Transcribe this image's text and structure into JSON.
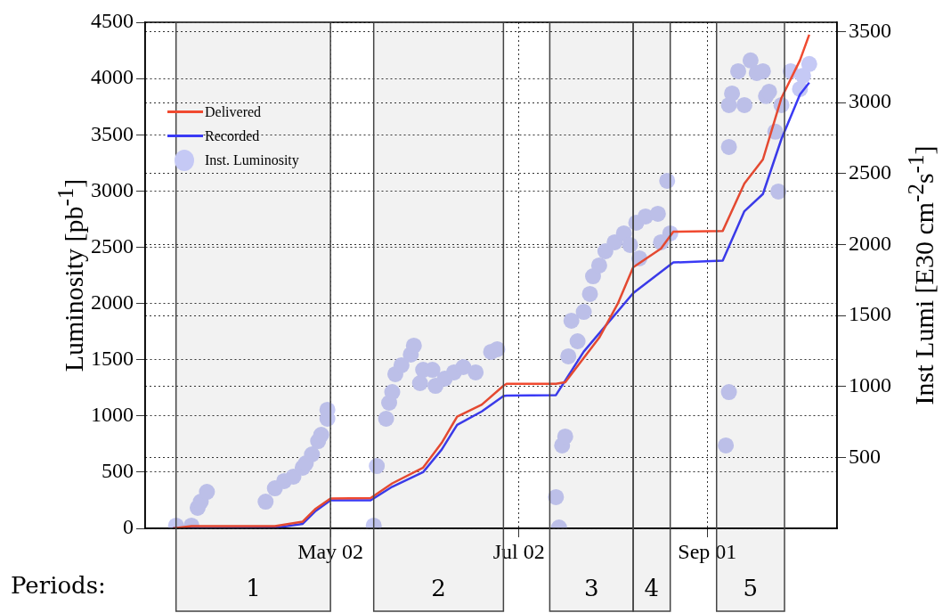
{
  "chart_data": {
    "type": "line",
    "ylabel": "Luminosity [pb$^{-1}$]",
    "y2label": "Inst Lumi [E30 cm$^{-2}$s$^{-1}$]",
    "xlim": [
      "--03-03",
      "--10-13"
    ],
    "xticks": [
      {
        "value": "--05-02",
        "label": "May 02"
      },
      {
        "value": "--07-02",
        "label": "Jul 02"
      },
      {
        "value": "--09-01",
        "label": "Sep 01"
      }
    ],
    "ylim": [
      0,
      4500
    ],
    "yticks": [
      0,
      500,
      1000,
      1500,
      2000,
      2500,
      3000,
      3500,
      4000,
      4500
    ],
    "y2lim": [
      0,
      3565
    ],
    "y2ticks": [
      500,
      1000,
      1500,
      2000,
      2500,
      3000,
      3500
    ],
    "grid": true,
    "legend": "top left",
    "marker": "none",
    "series": [
      {
        "name": "Delivered",
        "color": "#f04a30",
        "x": [
          "--03-12",
          "--03-18",
          "--04-14",
          "--04-23",
          "--04-27",
          "--05-02",
          "--05-15",
          "--05-22",
          "--06-01",
          "--06-07",
          "--06-12",
          "--06-20",
          "--06-27",
          "--06-28",
          "--07-14",
          "--07-17",
          "--07-28",
          "--08-03",
          "--08-08",
          "--08-17",
          "--08-21",
          "--09-06",
          "--09-13",
          "--09-19",
          "--09-25",
          "--10-01",
          "--10-04"
        ],
        "values": [
          0,
          20,
          20,
          60,
          170,
          265,
          270,
          400,
          540,
          760,
          993,
          1100,
          1268,
          1285,
          1285,
          1300,
          1695,
          1997,
          2321,
          2488,
          2638,
          2645,
          3066,
          3280,
          3827,
          4162,
          4390
        ]
      },
      {
        "name": "Recorded",
        "color": "#3a3af5",
        "x": [
          "--03-12",
          "--04-14",
          "--04-23",
          "--04-27",
          "--05-02",
          "--05-15",
          "--05-22",
          "--06-01",
          "--06-07",
          "--06-12",
          "--06-20",
          "--06-27",
          "--06-28",
          "--07-14",
          "--07-23",
          "--08-08",
          "--08-21",
          "--09-06",
          "--09-13",
          "--09-19",
          "--09-25",
          "--10-01",
          "--10-04"
        ],
        "values": [
          0,
          5,
          40,
          150,
          250,
          250,
          370,
          500,
          700,
          920,
          1040,
          1176,
          1180,
          1185,
          1572,
          2092,
          2364,
          2380,
          2820,
          2973,
          3462,
          3858,
          3964
        ]
      },
      {
        "name": "Inst. Luminosity",
        "type": "scatter",
        "axis": "y2",
        "marker": "circle",
        "color": "#c5c9f5",
        "x": [
          "--03-13",
          "--03-18",
          "--03-20",
          "--03-21",
          "--03-23",
          "--04-11",
          "--04-14",
          "--04-17",
          "--04-20",
          "--04-23",
          "--04-24",
          "--04-26",
          "--04-28",
          "--04-29",
          "--05-01",
          "--05-01",
          "--05-16",
          "--05-17",
          "--05-20",
          "--05-21",
          "--05-22",
          "--05-23",
          "--05-25",
          "--05-28",
          "--05-29",
          "--05-31",
          "--06-01",
          "--06-04",
          "--06-05",
          "--06-08",
          "--06-11",
          "--06-14",
          "--06-18",
          "--06-23",
          "--06-25",
          "--07-14",
          "--07-15",
          "--07-16",
          "--07-17",
          "--07-18",
          "--07-19",
          "--07-21",
          "--07-23",
          "--07-25",
          "--07-26",
          "--07-28",
          "--07-30",
          "--08-02",
          "--08-05",
          "--08-07",
          "--08-09",
          "--08-10",
          "--08-12",
          "--08-16",
          "--08-17",
          "--08-19",
          "--08-20",
          "--09-07",
          "--09-08",
          "--09-08",
          "--09-08",
          "--09-09",
          "--09-11",
          "--09-13",
          "--09-15",
          "--09-17",
          "--09-19",
          "--09-20",
          "--09-21",
          "--09-23",
          "--09-24",
          "--09-25",
          "--09-28",
          "--10-01",
          "--10-02",
          "--10-04"
        ],
        "values": [
          19,
          19,
          145,
          188,
          257,
          188,
          282,
          333,
          364,
          427,
          458,
          521,
          615,
          659,
          772,
          835,
          19,
          439,
          772,
          885,
          960,
          1086,
          1149,
          1224,
          1287,
          1023,
          1117,
          1117,
          1004,
          1055,
          1099,
          1136,
          1099,
          1243,
          1262,
          220,
          6,
          584,
          647,
          1212,
          1463,
          1318,
          1525,
          1651,
          1776,
          1852,
          1952,
          2015,
          2078,
          1996,
          2153,
          1902,
          2197,
          2216,
          2015,
          2448,
          2078,
          584,
          960,
          2687,
          2982,
          3063,
          3220,
          2982,
          3296,
          3208,
          3220,
          3045,
          3076,
          2794,
          2373,
          2982,
          3220,
          3095,
          3189,
          3271
        ]
      }
    ],
    "bands": [
      {
        "axis": "x",
        "from": "--03-13",
        "to": "--05-02",
        "label": "1",
        "color": "#444444"
      },
      {
        "axis": "x",
        "from": "--05-16",
        "to": "--06-27",
        "label": "2",
        "color": "#444444"
      },
      {
        "axis": "x",
        "from": "--07-12",
        "to": "--08-08",
        "label": "3",
        "color": "#444444"
      },
      {
        "axis": "x",
        "from": "--08-08",
        "to": "--08-20",
        "label": "4",
        "color": "#444444"
      },
      {
        "axis": "x",
        "from": "--09-04",
        "to": "--09-26",
        "label": "5",
        "color": "#444444"
      }
    ],
    "annotations": [
      "Periods:"
    ]
  }
}
